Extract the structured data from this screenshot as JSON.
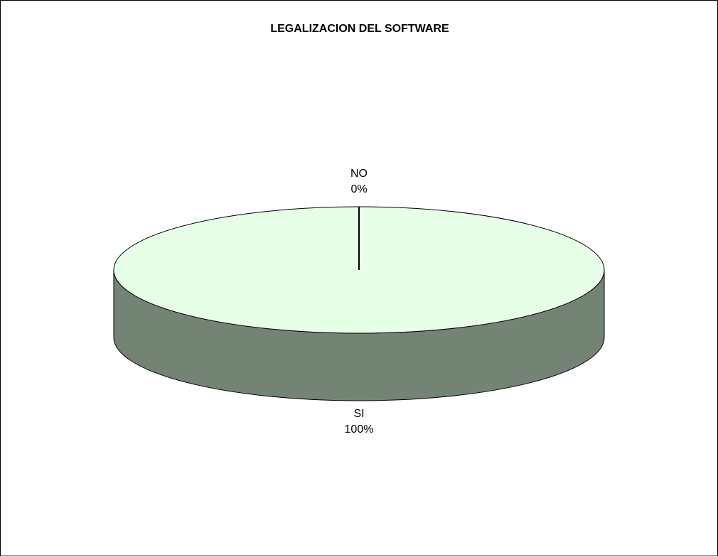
{
  "chart_data": {
    "type": "pie",
    "title": "LEGALIZACION DEL SOFTWARE",
    "three_d": true,
    "categories": [
      "SI",
      "NO"
    ],
    "values": [
      100,
      0
    ],
    "percent_labels": [
      "100%",
      "0%"
    ],
    "colors": {
      "top_face": "#e6ffe6",
      "side_face": "#748474",
      "outline": "#000000"
    },
    "legend": "none"
  }
}
